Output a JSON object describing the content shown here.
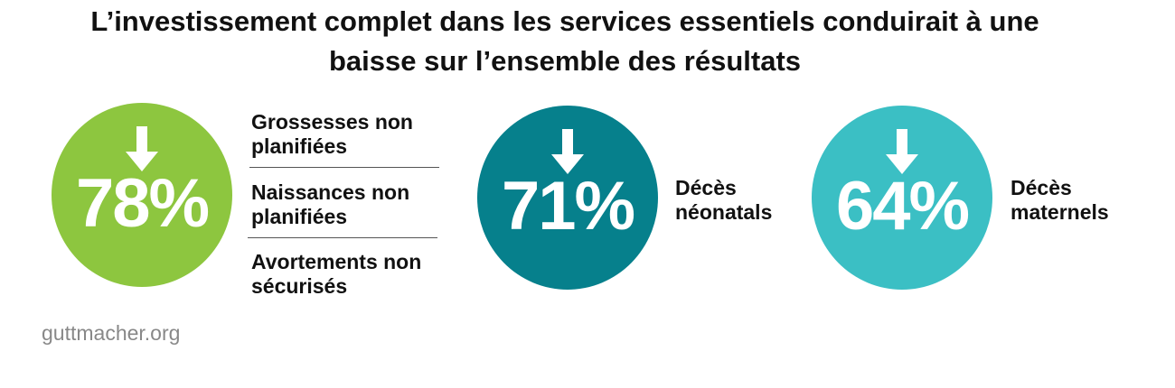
{
  "title": {
    "line1": "L’investissement complet dans les services essentiels conduirait à une",
    "line2": "baisse sur l’ensemble des résultats"
  },
  "stats": [
    {
      "value": "78%",
      "color": "#8dc63f",
      "icon": "arrow-down-icon",
      "labels": [
        "Grossesses non planifiées",
        "Naissances non planifiées",
        "Avortements non sécurisés"
      ]
    },
    {
      "value": "71%",
      "color": "#06808c",
      "icon": "arrow-down-icon",
      "labels": [
        "Décès néonatals"
      ]
    },
    {
      "value": "64%",
      "color": "#3bbfc4",
      "icon": "arrow-down-icon",
      "labels": [
        "Décès maternels"
      ]
    }
  ],
  "footer": "guttmacher.org"
}
